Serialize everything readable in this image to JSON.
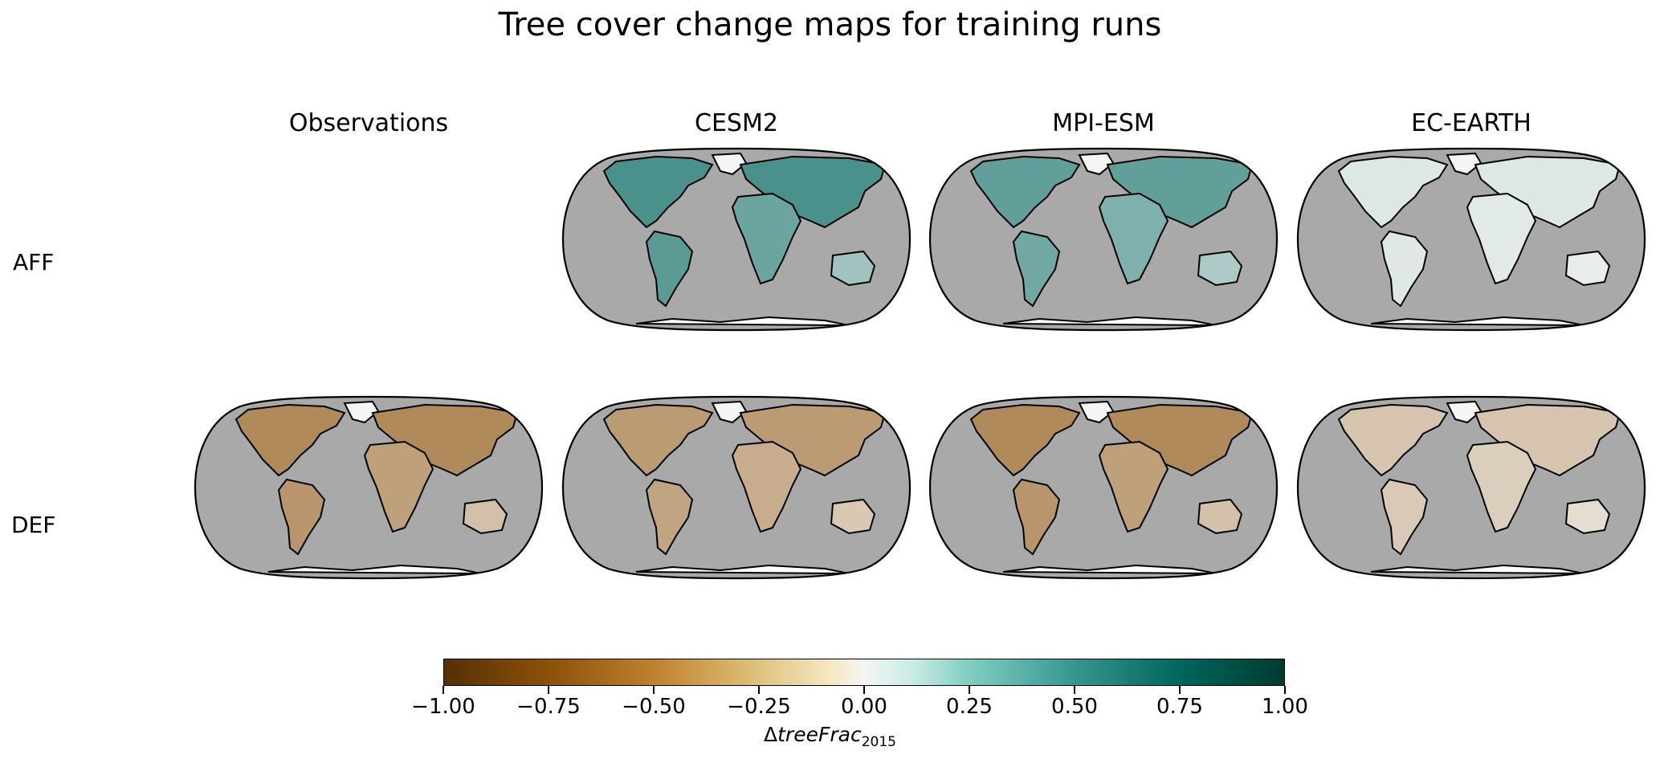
{
  "title": "Tree cover change maps for training runs",
  "columns": [
    "Observations",
    "CESM2",
    "MPI-ESM",
    "EC-EARTH"
  ],
  "rows": [
    "AFF",
    "DEF"
  ],
  "panels": [
    {
      "row": "AFF",
      "column": "CESM2",
      "shown": true,
      "intensity": 0.7
    },
    {
      "row": "AFF",
      "column": "MPI-ESM",
      "shown": true,
      "intensity": 0.6
    },
    {
      "row": "AFF",
      "column": "EC-EARTH",
      "shown": true,
      "intensity": 0.1
    },
    {
      "row": "DEF",
      "column": "Observations",
      "shown": true,
      "intensity": -0.65
    },
    {
      "row": "DEF",
      "column": "CESM2",
      "shown": true,
      "intensity": -0.55
    },
    {
      "row": "DEF",
      "column": "MPI-ESM",
      "shown": true,
      "intensity": -0.65
    },
    {
      "row": "DEF",
      "column": "EC-EARTH",
      "shown": true,
      "intensity": -0.3
    }
  ],
  "colorbar": {
    "min": -1.0,
    "max": 1.0,
    "ticks": [
      "−1.00",
      "−0.75",
      "−0.50",
      "−0.25",
      "0.00",
      "0.25",
      "0.50",
      "0.75",
      "1.00"
    ],
    "label_main": "treeFrac",
    "label_prefix": "Δ",
    "label_sub": "2015",
    "colormap": "BrBG",
    "colors": {
      "neg": "#8c510a",
      "zero": "#f5f5f5",
      "pos": "#01665e",
      "ocean": "#a9a9a9"
    }
  }
}
